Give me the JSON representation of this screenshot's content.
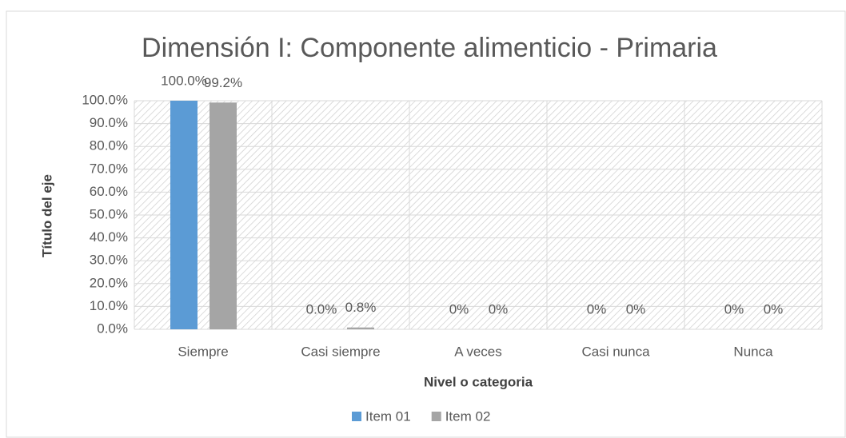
{
  "chart_data": {
    "type": "bar",
    "title": "Dimensión I: Componente alimenticio - Primaria",
    "y_axis_label": "Título del eje",
    "x_axis_label": "Nivel o categoria",
    "categories": [
      "Siempre",
      "Casi siempre",
      "A veces",
      "Casi nunca",
      "Nunca"
    ],
    "series": [
      {
        "name": "Item 01",
        "color": "#5b9bd5",
        "values": [
          100,
          0,
          0,
          0,
          0
        ],
        "value_labels": [
          "100.0%",
          "0.0%",
          "0%",
          "0%",
          "0%"
        ]
      },
      {
        "name": "Item 02",
        "color": "#a5a5a5",
        "values": [
          99.2,
          0.8,
          0,
          0,
          0
        ],
        "value_labels": [
          "99.2%",
          "0.8%",
          "0%",
          "0%",
          "0%"
        ]
      }
    ],
    "ylim": [
      0,
      100
    ],
    "yticks": [
      {
        "value": 0,
        "label": "0.0%"
      },
      {
        "value": 10,
        "label": "10.0%"
      },
      {
        "value": 20,
        "label": "20.0%"
      },
      {
        "value": 30,
        "label": "30.0%"
      },
      {
        "value": 40,
        "label": "40.0%"
      },
      {
        "value": 50,
        "label": "50.0%"
      },
      {
        "value": 60,
        "label": "60.0%"
      },
      {
        "value": 70,
        "label": "70.0%"
      },
      {
        "value": 80,
        "label": "80.0%"
      },
      {
        "value": 90,
        "label": "90.0%"
      },
      {
        "value": 100,
        "label": "100.0%"
      }
    ],
    "grid": true,
    "legend": "bottom"
  }
}
